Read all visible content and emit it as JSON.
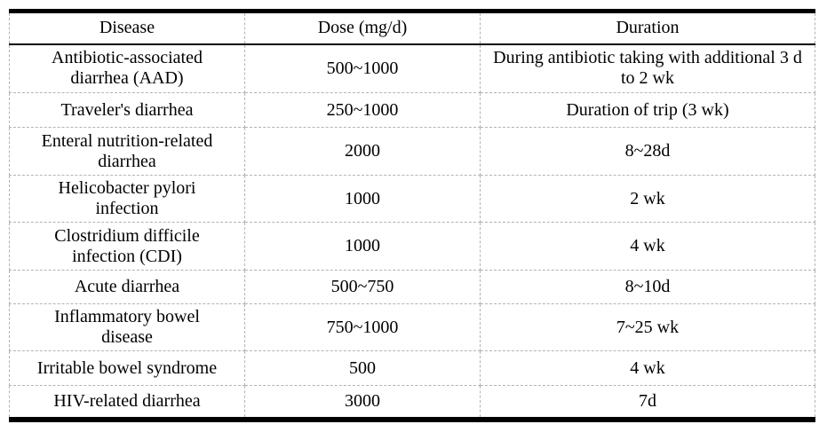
{
  "colors": {
    "background": "#ffffff",
    "text": "#000000",
    "heavy_rule": "#000000",
    "grid_dashed": "#b3b3b3"
  },
  "table": {
    "columns": [
      "Disease",
      "Dose (mg/d)",
      "Duration"
    ],
    "rows": [
      [
        "Antibiotic-associated diarrhea (AAD)",
        "500~1000",
        "During antibiotic taking with additional 3 d to 2 wk"
      ],
      [
        "Traveler's diarrhea",
        "250~1000",
        "Duration of trip (3 wk)"
      ],
      [
        "Enteral nutrition-related diarrhea",
        "2000",
        "8~28d"
      ],
      [
        "Helicobacter pylori infection",
        "1000",
        "2 wk"
      ],
      [
        "Clostridium difficile infection (CDI)",
        "1000",
        "4 wk"
      ],
      [
        "Acute diarrhea",
        "500~750",
        "8~10d"
      ],
      [
        "Inflammatory bowel disease",
        "750~1000",
        "7~25 wk"
      ],
      [
        "Irritable bowel syndrome",
        "500",
        "4 wk"
      ],
      [
        "HIV-related diarrhea",
        "3000",
        "7d"
      ]
    ]
  }
}
